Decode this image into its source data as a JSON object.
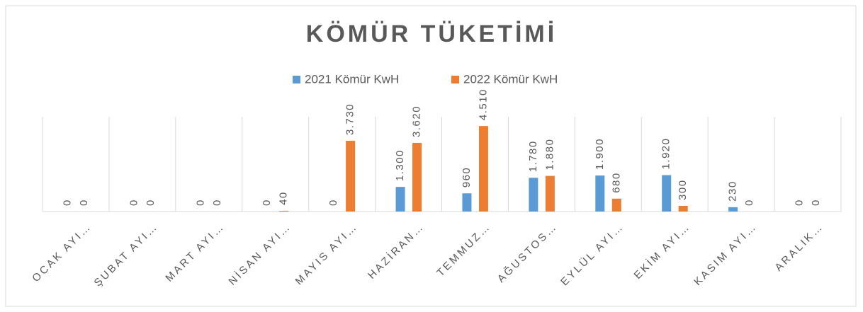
{
  "chart_data": {
    "type": "bar",
    "title": "KÖMÜR TÜKETİMİ",
    "categories": [
      "OCAK AYI…",
      "ŞUBAT AYI…",
      "MART AYI…",
      "NİSAN AYI…",
      "MAYIS AYI…",
      "HAZİRAN…",
      "TEMMUZ…",
      "AĞUSTOS…",
      "EYLÜL AYI…",
      "EKİM AYI…",
      "KASIM AYI…",
      "ARALIK…"
    ],
    "series": [
      {
        "name": "2021 Kömür KwH",
        "color": "#5b9bd5",
        "values": [
          0,
          0,
          0,
          0,
          0,
          1300,
          960,
          1780,
          1900,
          1920,
          230,
          0
        ],
        "value_labels": [
          "0",
          "0",
          "0",
          "0",
          "0",
          "1.300",
          "960",
          "1.780",
          "1.900",
          "1.920",
          "230",
          "0"
        ]
      },
      {
        "name": "2022 Kömür KwH",
        "color": "#ed7d31",
        "values": [
          0,
          0,
          0,
          40,
          3730,
          3620,
          4510,
          1880,
          680,
          300,
          0,
          0
        ],
        "value_labels": [
          "0",
          "0",
          "0",
          "40",
          "3.730",
          "3.620",
          "4.510",
          "1.880",
          "680",
          "300",
          "0",
          "0"
        ]
      }
    ],
    "ylim": [
      0,
      5000
    ],
    "legend": "top",
    "grid": true
  }
}
